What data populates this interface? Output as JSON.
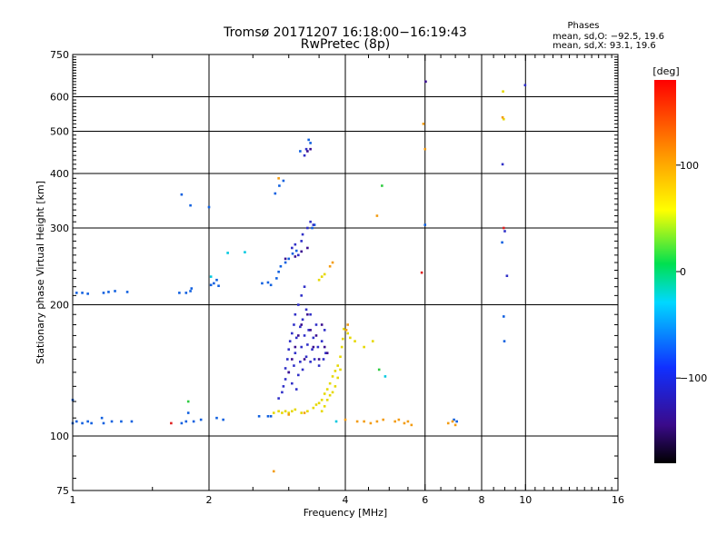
{
  "chart_data": {
    "type": "scatter",
    "title": "Tromsø 20171207 16:18:00−16:19:43",
    "subtitle": "RwPretec (8p)",
    "stats": {
      "heading": "Phases",
      "o_line": "mean, sd,O: −92.5, 19.6",
      "x_line": "mean, sd,X:  93.1, 19.6"
    },
    "xlabel": "Frequency [MHz]",
    "ylabel": "Stationary phase Virtual Height [km]",
    "xscale": "log",
    "yscale": "log",
    "xlim": [
      1,
      16
    ],
    "ylim": [
      75,
      750
    ],
    "xticks": [
      1,
      2,
      4,
      6,
      8,
      10,
      16
    ],
    "yticks": [
      75,
      100,
      200,
      300,
      400,
      500,
      600,
      750
    ],
    "x_gridlines": [
      2,
      4,
      6,
      8,
      10
    ],
    "y_gridlines": [
      100,
      200,
      300,
      400,
      500,
      600
    ],
    "grid": true,
    "colorbar": {
      "label": "[deg]",
      "range": [
        -180,
        180
      ],
      "ticks": [
        100,
        0,
        -100
      ]
    },
    "series": [
      {
        "color": "#1060e0",
        "points": [
          [
            1.0,
            107
          ],
          [
            1.02,
            108
          ],
          [
            1.05,
            107
          ],
          [
            1.08,
            108
          ],
          [
            1.1,
            107
          ],
          [
            1.17,
            107
          ],
          [
            1.22,
            108
          ],
          [
            1.28,
            108
          ],
          [
            1.35,
            108
          ],
          [
            1.74,
            107
          ],
          [
            1.78,
            108
          ],
          [
            1.85,
            108
          ],
          [
            1.92,
            109
          ],
          [
            2.08,
            110
          ],
          [
            2.15,
            109
          ],
          [
            2.58,
            111
          ],
          [
            2.7,
            111
          ],
          [
            2.74,
            111
          ],
          [
            1.0,
            121
          ],
          [
            1.16,
            110
          ],
          [
            1.8,
            113
          ],
          [
            1.72,
            213
          ],
          [
            1.78,
            213
          ],
          [
            1.82,
            215
          ],
          [
            1.83,
            218
          ],
          [
            1.02,
            213
          ],
          [
            1.05,
            213
          ],
          [
            1.08,
            212
          ],
          [
            1.17,
            213
          ],
          [
            1.2,
            214
          ],
          [
            1.24,
            215
          ],
          [
            1.32,
            214
          ],
          [
            2.02,
            222
          ],
          [
            2.05,
            224
          ],
          [
            2.08,
            228
          ],
          [
            2.1,
            221
          ],
          [
            2.62,
            224
          ],
          [
            2.7,
            225
          ],
          [
            2.74,
            222
          ],
          [
            2.82,
            230
          ],
          [
            2.85,
            238
          ],
          [
            2.88,
            245
          ],
          [
            2.95,
            250
          ],
          [
            3.0,
            255
          ],
          [
            3.06,
            262
          ],
          [
            3.12,
            266
          ],
          [
            2.8,
            360
          ],
          [
            2.86,
            375
          ],
          [
            2.92,
            385
          ],
          [
            3.18,
            450
          ],
          [
            1.74,
            358
          ],
          [
            1.82,
            338
          ],
          [
            2.0,
            335
          ],
          [
            3.32,
            478
          ],
          [
            3.35,
            470
          ],
          [
            3.38,
            300
          ],
          [
            3.42,
            305
          ],
          [
            6.0,
            305
          ],
          [
            8.88,
            278
          ],
          [
            8.95,
            188
          ],
          [
            8.98,
            165
          ],
          [
            6.95,
            109
          ],
          [
            7.05,
            108
          ]
        ]
      },
      {
        "color": "#3030c8",
        "points": [
          [
            2.85,
            122
          ],
          [
            2.9,
            126
          ],
          [
            2.92,
            130
          ],
          [
            2.95,
            135
          ],
          [
            2.95,
            143
          ],
          [
            2.98,
            150
          ],
          [
            3.0,
            140
          ],
          [
            3.0,
            158
          ],
          [
            3.02,
            165
          ],
          [
            3.05,
            132
          ],
          [
            3.05,
            172
          ],
          [
            3.08,
            145
          ],
          [
            3.08,
            180
          ],
          [
            3.1,
            155
          ],
          [
            3.1,
            190
          ],
          [
            3.12,
            128
          ],
          [
            3.12,
            168
          ],
          [
            3.15,
            138
          ],
          [
            3.15,
            200
          ],
          [
            3.18,
            148
          ],
          [
            3.18,
            178
          ],
          [
            3.2,
            160
          ],
          [
            3.2,
            210
          ],
          [
            3.22,
            142
          ],
          [
            3.22,
            185
          ],
          [
            3.25,
            170
          ],
          [
            3.25,
            220
          ],
          [
            3.28,
            152
          ],
          [
            3.28,
            195
          ],
          [
            3.3,
            162
          ],
          [
            3.32,
            175
          ],
          [
            3.35,
            148
          ],
          [
            3.35,
            190
          ],
          [
            3.38,
            158
          ],
          [
            3.4,
            168
          ],
          [
            3.42,
            150
          ],
          [
            3.45,
            180
          ],
          [
            3.48,
            160
          ],
          [
            3.5,
            145
          ],
          [
            3.55,
            165
          ],
          [
            3.58,
            150
          ],
          [
            3.6,
            175
          ],
          [
            3.62,
            155
          ],
          [
            3.05,
            270
          ],
          [
            3.1,
            275
          ],
          [
            3.15,
            260
          ],
          [
            3.2,
            280
          ],
          [
            3.22,
            290
          ],
          [
            3.25,
            440
          ],
          [
            3.28,
            455
          ],
          [
            3.3,
            300
          ],
          [
            3.35,
            310
          ],
          [
            3.4,
            305
          ],
          [
            9.98,
            638
          ],
          [
            8.9,
            420
          ],
          [
            9.0,
            295
          ],
          [
            9.1,
            233
          ]
        ]
      },
      {
        "color": "#3c1090",
        "points": [
          [
            3.0,
            140
          ],
          [
            3.05,
            150
          ],
          [
            3.1,
            160
          ],
          [
            3.15,
            170
          ],
          [
            3.2,
            180
          ],
          [
            3.25,
            150
          ],
          [
            3.3,
            190
          ],
          [
            3.35,
            175
          ],
          [
            3.4,
            160
          ],
          [
            3.45,
            170
          ],
          [
            3.5,
            150
          ],
          [
            3.55,
            180
          ],
          [
            3.6,
            160
          ],
          [
            3.65,
            155
          ],
          [
            2.95,
            255
          ],
          [
            3.1,
            258
          ],
          [
            3.2,
            265
          ],
          [
            3.3,
            270
          ],
          [
            3.3,
            450
          ],
          [
            3.35,
            455
          ],
          [
            6.02,
            650
          ]
        ]
      },
      {
        "color": "#e6d800",
        "points": [
          [
            2.78,
            113
          ],
          [
            2.85,
            114
          ],
          [
            2.9,
            113
          ],
          [
            2.95,
            114
          ],
          [
            3.0,
            113
          ],
          [
            3.05,
            114
          ],
          [
            3.1,
            115
          ],
          [
            3.2,
            113
          ],
          [
            3.3,
            114
          ],
          [
            3.4,
            116
          ],
          [
            3.45,
            118
          ],
          [
            3.5,
            119
          ],
          [
            3.55,
            121
          ],
          [
            3.6,
            125
          ],
          [
            3.65,
            128
          ],
          [
            3.7,
            132
          ],
          [
            3.75,
            137
          ],
          [
            3.8,
            141
          ],
          [
            3.85,
            145
          ],
          [
            3.9,
            152
          ],
          [
            3.93,
            160
          ],
          [
            3.95,
            167
          ],
          [
            3.97,
            176
          ],
          [
            3.55,
            114
          ],
          [
            3.6,
            117
          ],
          [
            3.65,
            121
          ],
          [
            3.7,
            124
          ],
          [
            3.75,
            126
          ],
          [
            3.8,
            130
          ],
          [
            3.85,
            136
          ],
          [
            3.9,
            142
          ],
          [
            3.5,
            228
          ],
          [
            3.55,
            232
          ],
          [
            3.6,
            235
          ],
          [
            4.05,
            172
          ],
          [
            4.1,
            168
          ],
          [
            4.2,
            165
          ],
          [
            4.4,
            160
          ],
          [
            4.6,
            165
          ],
          [
            8.92,
            617
          ],
          [
            8.95,
            533
          ]
        ]
      },
      {
        "color": "#f39c12",
        "points": [
          [
            3.0,
            112
          ],
          [
            3.25,
            113
          ],
          [
            4.0,
            109
          ],
          [
            4.25,
            108
          ],
          [
            4.4,
            108
          ],
          [
            4.55,
            107
          ],
          [
            4.7,
            108
          ],
          [
            4.85,
            109
          ],
          [
            5.15,
            108
          ],
          [
            5.25,
            109
          ],
          [
            5.4,
            107
          ],
          [
            5.5,
            108
          ],
          [
            5.6,
            106
          ],
          [
            6.75,
            107
          ],
          [
            6.9,
            108
          ],
          [
            7.0,
            106
          ],
          [
            4.05,
            180
          ],
          [
            4.02,
            175
          ],
          [
            3.7,
            245
          ],
          [
            3.75,
            250
          ],
          [
            2.85,
            390
          ],
          [
            4.7,
            320
          ],
          [
            6.0,
            455
          ],
          [
            5.95,
            520
          ],
          [
            8.9,
            538
          ],
          [
            2.78,
            83
          ]
        ]
      },
      {
        "color": "#2ecc40",
        "points": [
          [
            1.8,
            120
          ],
          [
            4.82,
            375
          ],
          [
            4.75,
            142
          ]
        ]
      },
      {
        "color": "#00c8e0",
        "points": [
          [
            3.82,
            108
          ],
          [
            4.9,
            137
          ],
          [
            2.02,
            232
          ],
          [
            2.2,
            263
          ],
          [
            2.4,
            264
          ]
        ]
      },
      {
        "color": "#e02020",
        "points": [
          [
            1.65,
            107
          ],
          [
            5.9,
            237
          ],
          [
            8.95,
            300
          ]
        ]
      }
    ]
  }
}
